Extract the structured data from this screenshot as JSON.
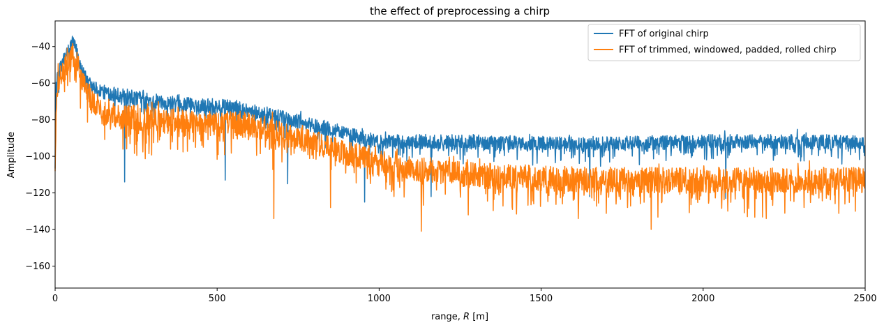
{
  "chart_data": {
    "type": "line",
    "title": "the effect of preprocessing a chirp",
    "xlabel": "range, R [m]",
    "xlabel_parts": {
      "prefix": "range, ",
      "var": "R",
      "suffix": " [m]"
    },
    "ylabel": "Amplitude",
    "xlim": [
      0,
      2500
    ],
    "ylim": [
      -172,
      -26
    ],
    "xticks": [
      0,
      500,
      1000,
      1500,
      2000,
      2500
    ],
    "yticks": [
      -160,
      -140,
      -120,
      -100,
      -80,
      -60,
      -40
    ],
    "grid": false,
    "legend_position": "top-right",
    "series": [
      {
        "name": "FFT of original chirp",
        "color": "#1f77b4",
        "trend": {
          "x": [
            0,
            3,
            10,
            20,
            30,
            45,
            55,
            65,
            80,
            100,
            150,
            250,
            350,
            450,
            550,
            650,
            750,
            850,
            950,
            1000,
            1250,
            1500,
            1750,
            2000,
            2250,
            2500
          ],
          "y": [
            -98,
            -62,
            -55,
            -50,
            -46,
            -40,
            -38,
            -42,
            -50,
            -60,
            -65,
            -68,
            -71,
            -72,
            -73,
            -77,
            -81,
            -85,
            -90,
            -92,
            -92,
            -93,
            -93,
            -92,
            -92,
            -92
          ]
        },
        "noise_amplitude": 4,
        "spikes": [
          {
            "x": 215,
            "y": -114
          },
          {
            "x": 525,
            "y": -113
          },
          {
            "x": 718,
            "y": -115
          },
          {
            "x": 955,
            "y": -125
          },
          {
            "x": 1160,
            "y": -122
          },
          {
            "x": 1650,
            "y": -122
          },
          {
            "x": 2070,
            "y": -123
          }
        ]
      },
      {
        "name": "FFT of trimmed, windowed, padded, rolled chirp",
        "color": "#ff7f0e",
        "trend": {
          "x": [
            0,
            3,
            10,
            20,
            35,
            55,
            70,
            90,
            120,
            200,
            300,
            400,
            500,
            600,
            700,
            800,
            900,
            1000,
            1250,
            1500,
            1750,
            2000,
            2250,
            2500
          ],
          "y": [
            -108,
            -75,
            -60,
            -55,
            -50,
            -45,
            -50,
            -62,
            -72,
            -78,
            -80,
            -81,
            -82,
            -83,
            -88,
            -93,
            -98,
            -104,
            -110,
            -112,
            -113,
            -113,
            -113,
            -113
          ]
        },
        "noise_amplitude": 7,
        "spikes": [
          {
            "x": 675,
            "y": -134
          },
          {
            "x": 850,
            "y": -128
          },
          {
            "x": 1130,
            "y": -141
          },
          {
            "x": 1275,
            "y": -132
          },
          {
            "x": 1615,
            "y": -134
          },
          {
            "x": 1840,
            "y": -140
          },
          {
            "x": 2195,
            "y": -134
          },
          {
            "x": 2470,
            "y": -130
          }
        ]
      }
    ]
  }
}
